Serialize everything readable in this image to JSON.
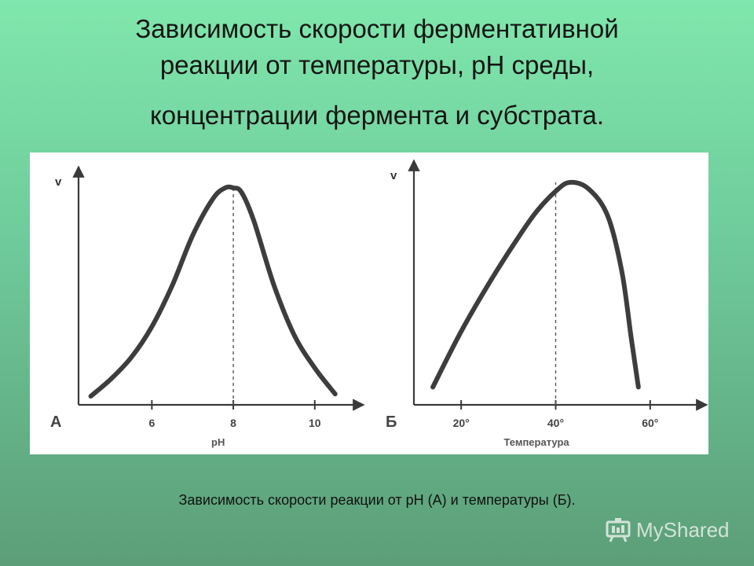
{
  "title": {
    "line1": "Зависимость скорости ферментативной",
    "line2": "реакции от температуры, pH среды,",
    "line3": "концентрации фермента и субстрата."
  },
  "caption": "Зависимость скорости реакции от pH (А) и температуры (Б).",
  "brand": {
    "text": "MyShared",
    "icon": "presentation-board-icon"
  },
  "colors": {
    "curve": "#3d3d3d",
    "axis": "#3a3a3a",
    "background_top": "#7fe7ac",
    "background_bottom": "#5c9e78"
  },
  "chart_data": [
    {
      "type": "line",
      "panel_label": "А",
      "ylabel": "v",
      "xlabel": "pH",
      "x_ticks": [
        6,
        8,
        10
      ],
      "tick_labels": [
        "6",
        "8",
        "10"
      ],
      "xlim": [
        4.2,
        11.2
      ],
      "ylim": [
        0,
        1
      ],
      "optimum_x": 8,
      "series": [
        {
          "x": [
            4.5,
            5.0,
            5.5,
            6.0,
            6.5,
            7.0,
            7.5,
            7.8,
            8.0,
            8.2,
            8.5,
            9.0,
            9.5,
            10.0,
            10.5
          ],
          "y": [
            0.04,
            0.12,
            0.22,
            0.36,
            0.55,
            0.78,
            0.95,
            1.0,
            1.0,
            0.98,
            0.85,
            0.55,
            0.32,
            0.17,
            0.05
          ]
        }
      ]
    },
    {
      "type": "line",
      "panel_label": "Б",
      "ylabel": "v",
      "xlabel": "Температура",
      "x_ticks": [
        20,
        40,
        60
      ],
      "tick_labels": [
        "20°",
        "40°",
        "60°"
      ],
      "xlim": [
        10,
        72
      ],
      "ylim": [
        0,
        1
      ],
      "optimum_x": 40,
      "series": [
        {
          "x": [
            14,
            20,
            26,
            32,
            36,
            40,
            43,
            47,
            51,
            54,
            56,
            57.5
          ],
          "y": [
            0.08,
            0.33,
            0.55,
            0.75,
            0.87,
            0.96,
            1.0,
            0.97,
            0.85,
            0.6,
            0.3,
            0.08
          ]
        }
      ]
    }
  ]
}
